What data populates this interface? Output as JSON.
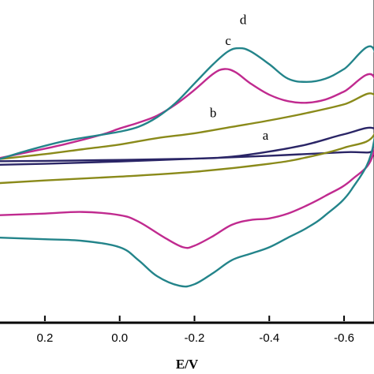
{
  "chart_data": {
    "type": "line",
    "title": "",
    "xlabel": "E/V",
    "ylabel": "",
    "x_reversed": true,
    "xlim": [
      0.32,
      -0.68
    ],
    "xticks": [
      0.2,
      0.0,
      -0.2,
      -0.4,
      -0.6
    ],
    "xtick_labels": [
      "0.2",
      "0.0",
      "-0.2",
      "-0.4",
      "-0.6"
    ],
    "ylim": [
      0,
      100
    ],
    "y_ticks_shown": false,
    "grid": false,
    "legend": "none",
    "series": [
      {
        "name": "a",
        "label_at": {
          "x": -0.39,
          "y": 56.5
        },
        "color": "#2a2566",
        "points": [
          [
            0.32,
            49.8
          ],
          [
            0.2,
            49.9
          ],
          [
            0.0,
            50.2
          ],
          [
            -0.2,
            50.6
          ],
          [
            -0.3,
            51.2
          ],
          [
            -0.4,
            52.8
          ],
          [
            -0.5,
            55.0
          ],
          [
            -0.6,
            58.2
          ],
          [
            -0.68,
            60.0
          ],
          [
            -0.68,
            53.2
          ],
          [
            -0.6,
            52.6
          ],
          [
            -0.4,
            51.5
          ],
          [
            -0.2,
            50.6
          ],
          [
            0.0,
            49.7
          ],
          [
            0.2,
            49.0
          ],
          [
            0.32,
            48.7
          ]
        ]
      },
      {
        "name": "b",
        "label_at": {
          "x": -0.25,
          "y": 63.5
        },
        "color": "#8a8a1a",
        "points": [
          [
            0.32,
            50.5
          ],
          [
            0.2,
            52.0
          ],
          [
            0.1,
            53.5
          ],
          [
            0.0,
            55.0
          ],
          [
            -0.1,
            57.0
          ],
          [
            -0.2,
            58.5
          ],
          [
            -0.3,
            60.5
          ],
          [
            -0.4,
            62.5
          ],
          [
            -0.5,
            64.8
          ],
          [
            -0.6,
            67.5
          ],
          [
            -0.68,
            70.5
          ],
          [
            -0.68,
            58.0
          ],
          [
            -0.6,
            54.0
          ],
          [
            -0.5,
            51.0
          ],
          [
            -0.4,
            49.0
          ],
          [
            -0.2,
            46.5
          ],
          [
            0.0,
            45.0
          ],
          [
            0.2,
            43.8
          ],
          [
            0.32,
            43.0
          ]
        ]
      },
      {
        "name": "c",
        "label_at": {
          "x": -0.29,
          "y": 86.0
        },
        "color": "#c02a8f",
        "points": [
          [
            0.32,
            50.8
          ],
          [
            0.25,
            52.5
          ],
          [
            0.15,
            55.0
          ],
          [
            0.05,
            58.0
          ],
          [
            0.0,
            60.0
          ],
          [
            -0.05,
            61.8
          ],
          [
            -0.1,
            64.0
          ],
          [
            -0.15,
            67.5
          ],
          [
            -0.2,
            72.0
          ],
          [
            -0.25,
            77.0
          ],
          [
            -0.28,
            78.5
          ],
          [
            -0.31,
            77.5
          ],
          [
            -0.35,
            74.0
          ],
          [
            -0.4,
            70.5
          ],
          [
            -0.45,
            68.5
          ],
          [
            -0.5,
            68.0
          ],
          [
            -0.55,
            69.0
          ],
          [
            -0.6,
            71.5
          ],
          [
            -0.68,
            76.0
          ],
          [
            -0.68,
            53.0
          ],
          [
            -0.62,
            44.0
          ],
          [
            -0.55,
            39.0
          ],
          [
            -0.5,
            36.0
          ],
          [
            -0.45,
            33.5
          ],
          [
            -0.4,
            32.0
          ],
          [
            -0.35,
            31.5
          ],
          [
            -0.3,
            30.0
          ],
          [
            -0.25,
            26.5
          ],
          [
            -0.2,
            23.5
          ],
          [
            -0.17,
            23.0
          ],
          [
            -0.12,
            26.0
          ],
          [
            -0.05,
            31.0
          ],
          [
            0.0,
            33.0
          ],
          [
            0.1,
            34.0
          ],
          [
            0.2,
            33.5
          ],
          [
            0.32,
            33.0
          ]
        ]
      },
      {
        "name": "d",
        "label_at": {
          "x": -0.33,
          "y": 92.5
        },
        "color": "#23848a",
        "points": [
          [
            0.32,
            50.5
          ],
          [
            0.25,
            53.0
          ],
          [
            0.15,
            56.0
          ],
          [
            0.05,
            58.0
          ],
          [
            0.0,
            59.0
          ],
          [
            -0.05,
            60.5
          ],
          [
            -0.1,
            63.5
          ],
          [
            -0.15,
            68.0
          ],
          [
            -0.2,
            74.0
          ],
          [
            -0.25,
            80.0
          ],
          [
            -0.29,
            84.0
          ],
          [
            -0.32,
            85.0
          ],
          [
            -0.35,
            84.0
          ],
          [
            -0.4,
            80.0
          ],
          [
            -0.45,
            75.5
          ],
          [
            -0.5,
            74.5
          ],
          [
            -0.55,
            75.5
          ],
          [
            -0.6,
            78.5
          ],
          [
            -0.68,
            84.5
          ],
          [
            -0.68,
            56.0
          ],
          [
            -0.62,
            41.0
          ],
          [
            -0.55,
            33.0
          ],
          [
            -0.5,
            29.0
          ],
          [
            -0.45,
            26.0
          ],
          [
            -0.4,
            23.0
          ],
          [
            -0.35,
            21.0
          ],
          [
            -0.3,
            19.0
          ],
          [
            -0.25,
            15.0
          ],
          [
            -0.2,
            11.5
          ],
          [
            -0.16,
            11.0
          ],
          [
            -0.1,
            14.0
          ],
          [
            -0.05,
            19.0
          ],
          [
            0.0,
            23.0
          ],
          [
            0.1,
            25.0
          ],
          [
            0.2,
            25.5
          ],
          [
            0.32,
            26.0
          ]
        ]
      }
    ]
  }
}
